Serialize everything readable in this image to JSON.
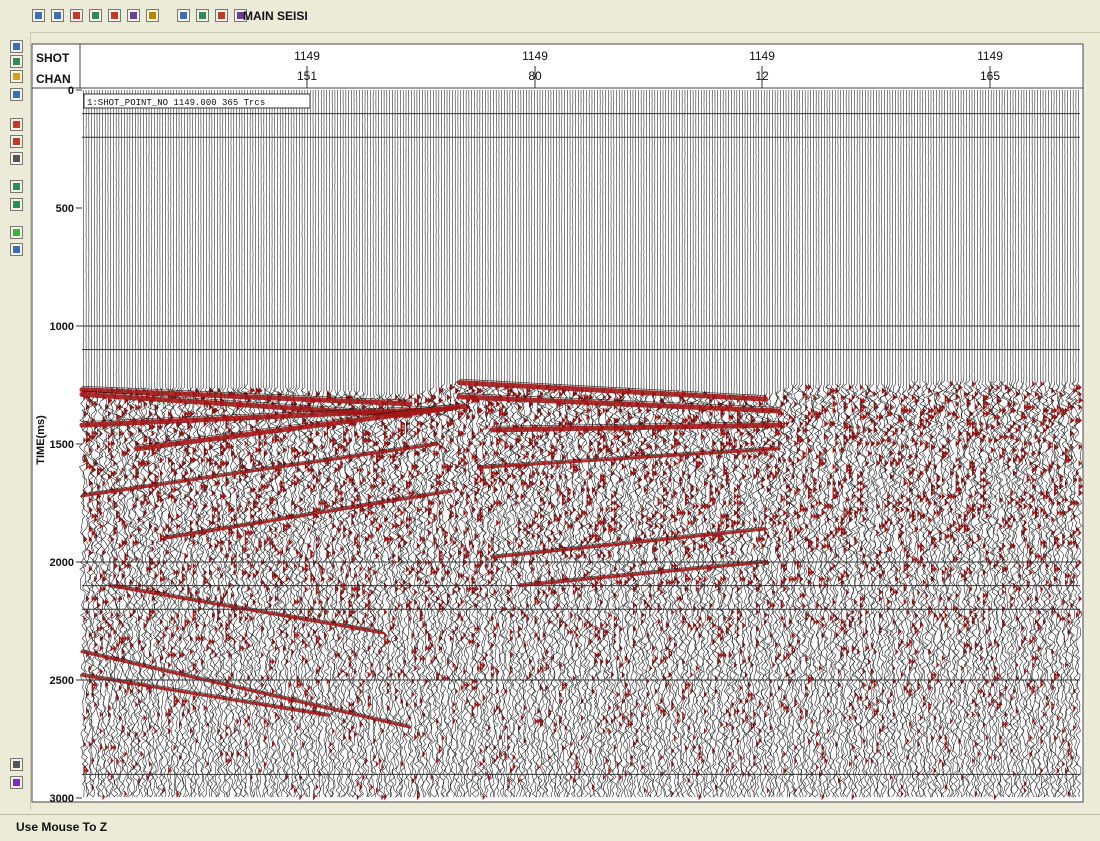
{
  "window": {
    "title": "MAIN  SEISI"
  },
  "toolbar": {
    "buttons": [
      {
        "icon": "zoom-in-icon",
        "color": "#3b6fb5"
      },
      {
        "icon": "zoom-out-icon",
        "color": "#3b6fb5"
      },
      {
        "icon": "color-display-icon",
        "color": "#c0392b"
      },
      {
        "icon": "wiggle-display-icon",
        "color": "#2e8b57"
      },
      {
        "icon": "flag-icon",
        "color": "#c0392b"
      },
      {
        "icon": "palette-icon",
        "color": "#6a3d9a"
      },
      {
        "icon": "grid-icon",
        "color": "#b8860b"
      },
      {
        "icon": "pick-icon",
        "color": "#3b6fb5"
      },
      {
        "icon": "filter-icon",
        "color": "#2e8b57"
      },
      {
        "icon": "annotate-icon",
        "color": "#c0392b"
      },
      {
        "icon": "scale-icon",
        "color": "#6a3d9a"
      }
    ]
  },
  "left_toolbar": {
    "buttons": [
      {
        "icon": "select-icon",
        "color": "#3b6fb5"
      },
      {
        "icon": "trace-icon",
        "color": "#2e8b57"
      },
      {
        "icon": "color-bar-icon",
        "color": "#d4a017"
      },
      {
        "icon": "header-icon",
        "color": "#3b6fb5"
      },
      {
        "icon": "mute-icon",
        "color": "#c0392b"
      },
      {
        "icon": "gain-icon",
        "color": "#c0392b"
      },
      {
        "icon": "stack-icon",
        "color": "#555555"
      },
      {
        "icon": "velocity-icon",
        "color": "#2e8b57"
      },
      {
        "icon": "spectrum-icon",
        "color": "#2e8b57"
      },
      {
        "icon": "refresh-icon",
        "color": "#3cb043"
      },
      {
        "icon": "save-icon",
        "color": "#3b6fb5"
      },
      {
        "icon": "pointer-icon",
        "color": "#555555"
      },
      {
        "icon": "bookmark-icon",
        "color": "#7b2cbf"
      }
    ]
  },
  "header_axis": {
    "row_labels": [
      "SHOT",
      "CHAN"
    ],
    "ticks": [
      {
        "shot": "1149",
        "chan": "151"
      },
      {
        "shot": "1149",
        "chan": "80"
      },
      {
        "shot": "1149",
        "chan": "12"
      },
      {
        "shot": "1149",
        "chan": "165"
      }
    ]
  },
  "annotation": {
    "text": "1:SHOT_POINT_NO 1149.000 365 Trcs"
  },
  "status": {
    "text": "Use Mouse To Z"
  },
  "chart_data": {
    "type": "seismic-wiggle",
    "ylabel": "TIME(ms)",
    "ylim": [
      0,
      3000
    ],
    "y_ticks": [
      0,
      500,
      1000,
      1500,
      2000,
      2500,
      3000
    ],
    "y_tick_labels": [
      "0",
      "500",
      "1000",
      "1500",
      "2000",
      "2500",
      "3000"
    ],
    "horizontal_gridlines_ms": [
      100,
      200,
      1000,
      1100,
      2000,
      2100,
      2200,
      2500,
      2900
    ],
    "channels": [
      151,
      80,
      12,
      165
    ],
    "shot_point": 1149,
    "trace_count": 365,
    "fill_color": "#a31515",
    "trace_color": "#1a1a1a",
    "first_break_ms": [
      {
        "trace": 0,
        "time": 1270
      },
      {
        "trace": 60,
        "time": 1260
      },
      {
        "trace": 120,
        "time": 1300
      },
      {
        "trace": 138,
        "time": 1240
      },
      {
        "trace": 250,
        "time": 1300
      },
      {
        "trace": 261,
        "time": 1250
      },
      {
        "trace": 365,
        "time": 1240
      }
    ],
    "reflection_events": [
      {
        "from_trace": 0,
        "to_trace": 120,
        "start_ms": 1270,
        "end_ms": 1330
      },
      {
        "from_trace": 0,
        "to_trace": 120,
        "start_ms": 1290,
        "end_ms": 1380
      },
      {
        "from_trace": 0,
        "to_trace": 135,
        "start_ms": 1420,
        "end_ms": 1350
      },
      {
        "from_trace": 20,
        "to_trace": 140,
        "start_ms": 1520,
        "end_ms": 1340
      },
      {
        "from_trace": 138,
        "to_trace": 250,
        "start_ms": 1240,
        "end_ms": 1310
      },
      {
        "from_trace": 138,
        "to_trace": 255,
        "start_ms": 1300,
        "end_ms": 1360
      },
      {
        "from_trace": 150,
        "to_trace": 255,
        "start_ms": 1440,
        "end_ms": 1420
      },
      {
        "from_trace": 0,
        "to_trace": 130,
        "start_ms": 1720,
        "end_ms": 1500
      },
      {
        "from_trace": 30,
        "to_trace": 135,
        "start_ms": 1900,
        "end_ms": 1700
      },
      {
        "from_trace": 145,
        "to_trace": 255,
        "start_ms": 1600,
        "end_ms": 1520
      },
      {
        "from_trace": 150,
        "to_trace": 250,
        "start_ms": 1980,
        "end_ms": 1860
      },
      {
        "from_trace": 160,
        "to_trace": 250,
        "start_ms": 2100,
        "end_ms": 2000
      },
      {
        "from_trace": 0,
        "to_trace": 120,
        "start_ms": 2380,
        "end_ms": 2700
      },
      {
        "from_trace": 0,
        "to_trace": 90,
        "start_ms": 2480,
        "end_ms": 2650
      },
      {
        "from_trace": 10,
        "to_trace": 110,
        "start_ms": 2100,
        "end_ms": 2300
      }
    ]
  }
}
